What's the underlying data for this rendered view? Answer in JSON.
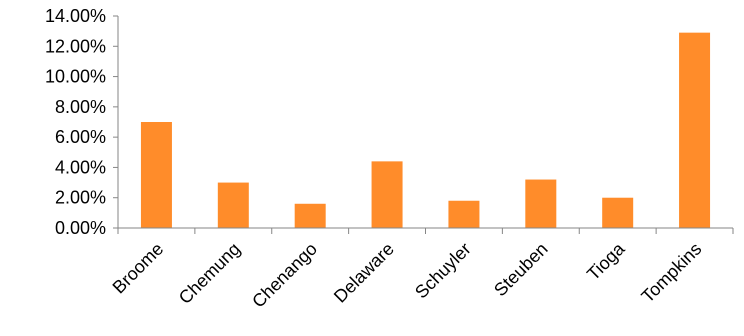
{
  "chart_data": {
    "type": "bar",
    "title": "",
    "xlabel": "",
    "ylabel": "",
    "categories": [
      "Broome",
      "Chemung",
      "Chenango",
      "Delaware",
      "Schuyler",
      "Steuben",
      "Tioga",
      "Tompkins"
    ],
    "values": [
      7.0,
      3.0,
      1.6,
      4.4,
      1.8,
      3.2,
      2.0,
      12.9
    ],
    "ylim": [
      0,
      14
    ],
    "yticks": [
      "0.00%",
      "2.00%",
      "4.00%",
      "6.00%",
      "8.00%",
      "10.00%",
      "12.00%",
      "14.00%"
    ],
    "value_format": "percent",
    "bar_color": "#FF8C2A",
    "axis_color": "#868686",
    "grid": false,
    "legend": "none"
  }
}
